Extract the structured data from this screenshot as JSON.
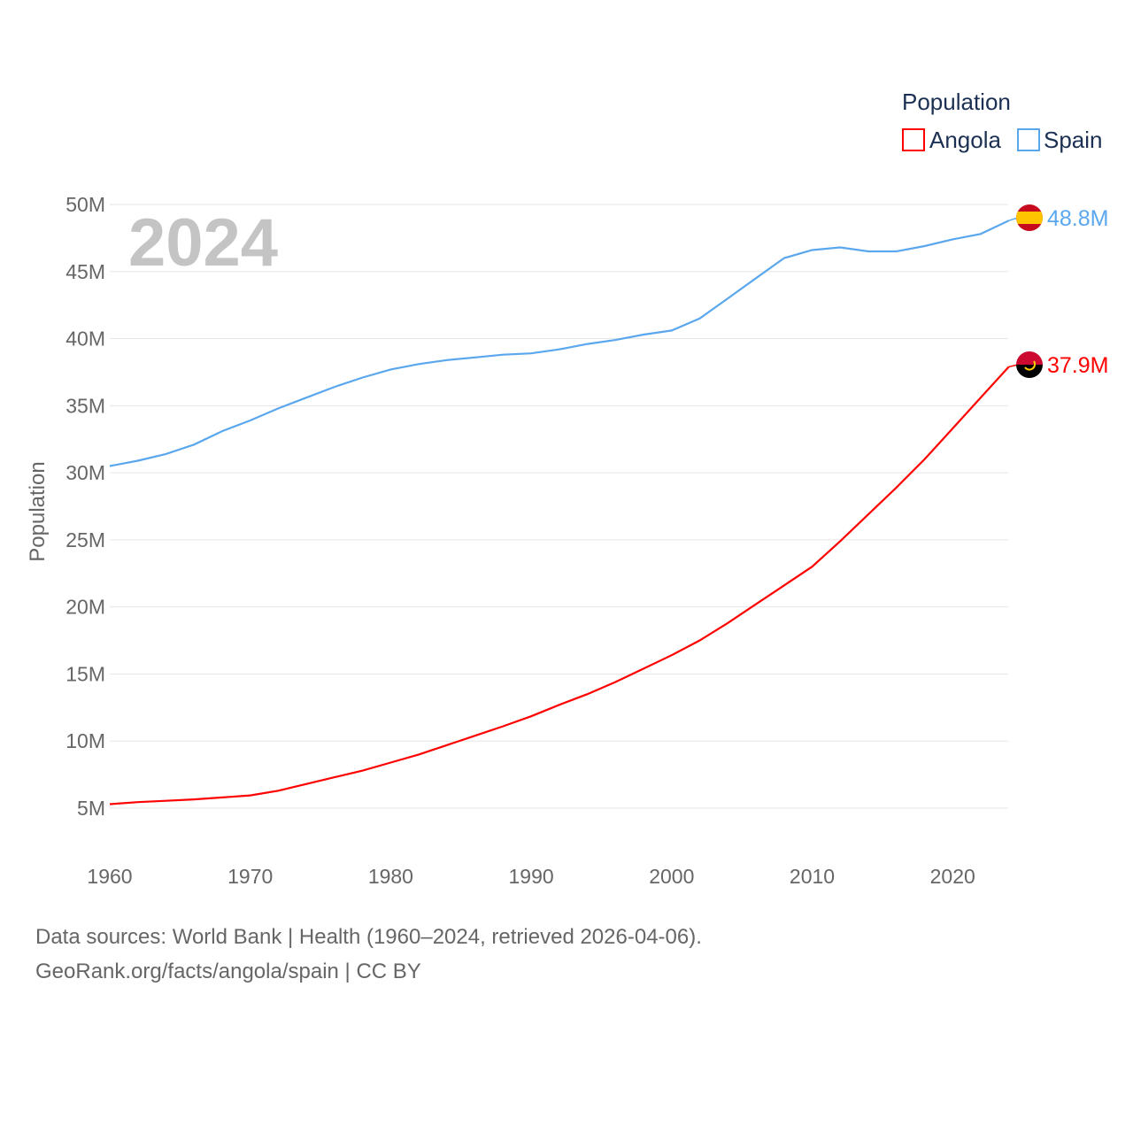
{
  "chart_data": {
    "type": "line",
    "title": "Population",
    "xlabel": "",
    "ylabel": "Population",
    "year_label": "2024",
    "xlim": [
      1960,
      2024
    ],
    "ylim": [
      5000000,
      50000000
    ],
    "x_ticks": [
      1960,
      1970,
      1980,
      1990,
      2000,
      2010,
      2020
    ],
    "x_tick_labels": [
      "1960",
      "1970",
      "1980",
      "1990",
      "2000",
      "2010",
      "2020"
    ],
    "y_ticks": [
      5,
      10,
      15,
      20,
      25,
      30,
      35,
      40,
      45,
      50
    ],
    "y_tick_labels": [
      "5M",
      "10M",
      "15M",
      "20M",
      "25M",
      "30M",
      "35M",
      "40M",
      "45M",
      "50M"
    ],
    "grid": true,
    "legend_position": "top-right",
    "x": [
      1960,
      1962,
      1964,
      1966,
      1968,
      1970,
      1972,
      1974,
      1976,
      1978,
      1980,
      1982,
      1984,
      1986,
      1988,
      1990,
      1992,
      1994,
      1996,
      1998,
      2000,
      2002,
      2004,
      2006,
      2008,
      2010,
      2012,
      2014,
      2016,
      2018,
      2020,
      2022,
      2024
    ],
    "series": [
      {
        "name": "Angola",
        "color": "#ff0000",
        "end_label": "37.9M",
        "values": [
          5.3,
          5.45,
          5.55,
          5.65,
          5.8,
          5.95,
          6.3,
          6.8,
          7.3,
          7.8,
          8.4,
          9.0,
          9.7,
          10.4,
          11.1,
          11.85,
          12.7,
          13.5,
          14.4,
          15.4,
          16.4,
          17.5,
          18.8,
          20.2,
          21.6,
          23.0,
          24.9,
          26.9,
          28.9,
          31.0,
          33.3,
          35.6,
          37.9
        ]
      },
      {
        "name": "Spain",
        "color": "#5ba7ee",
        "end_label": "48.8M",
        "values": [
          30.5,
          30.9,
          31.4,
          32.1,
          33.1,
          33.9,
          34.8,
          35.6,
          36.4,
          37.1,
          37.7,
          38.1,
          38.4,
          38.6,
          38.8,
          38.9,
          39.2,
          39.6,
          39.9,
          40.3,
          40.6,
          41.5,
          43.0,
          44.5,
          46.0,
          46.6,
          46.8,
          46.5,
          46.5,
          46.9,
          47.4,
          47.8,
          48.8
        ]
      }
    ],
    "value_unit": "millions"
  },
  "legend": {
    "title": "Population",
    "items": [
      "Angola",
      "Spain"
    ]
  },
  "footer": {
    "line1": "Data sources: World Bank | Health (1960–2024, retrieved 2026-04-06).",
    "line2": "GeoRank.org/facts/angola/spain | CC BY"
  }
}
